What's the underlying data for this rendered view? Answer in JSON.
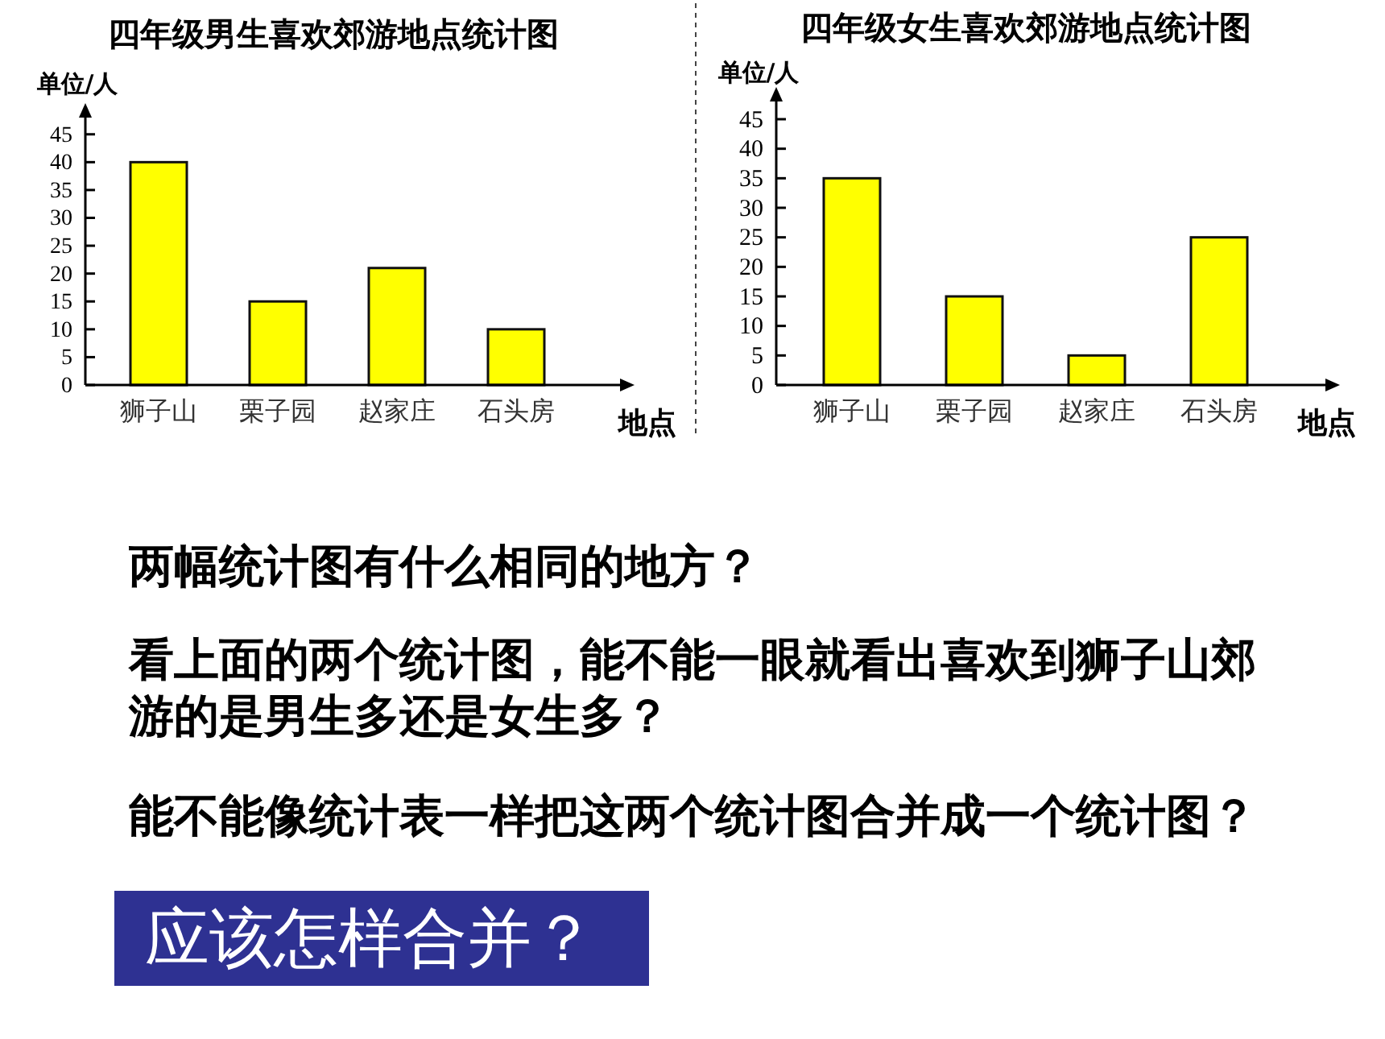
{
  "chart_data": [
    {
      "type": "bar",
      "title": "四年级男生喜欢郊游地点统计图",
      "ylabel": "单位/人",
      "xlabel": "地点",
      "categories": [
        "狮子山",
        "栗子园",
        "赵家庄",
        "石头房"
      ],
      "values": [
        40,
        15,
        21,
        10
      ],
      "color": "#ffff00",
      "ylim": [
        0,
        48
      ],
      "yticks": [
        0,
        5,
        10,
        15,
        20,
        25,
        30,
        35,
        40,
        45
      ]
    },
    {
      "type": "bar",
      "title": "四年级女生喜欢郊游地点统计图",
      "ylabel": "单位/人",
      "xlabel": "地点",
      "categories": [
        "狮子山",
        "栗子园",
        "赵家庄",
        "石头房"
      ],
      "values": [
        35,
        15,
        5,
        25
      ],
      "color": "#ffff00",
      "ylim": [
        0,
        48
      ],
      "yticks": [
        0,
        5,
        10,
        15,
        20,
        25,
        30,
        35,
        40,
        45
      ]
    },
    {
      "type": "other",
      "annotations": [
        "两幅统计图有什么相同的地方？",
        "看上面的两个统计图，能不能一眼就看出喜欢到狮子山郊游的是男生多还是女生多？",
        "能不能像统计表一样把这两个统计图合并成一个统计图？",
        "应该怎样合并？"
      ]
    }
  ]
}
